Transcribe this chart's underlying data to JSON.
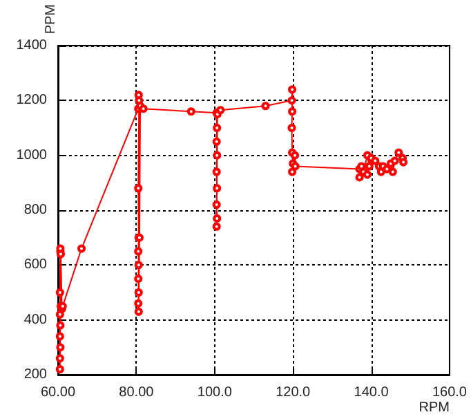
{
  "chart_data": {
    "type": "line",
    "xlabel": "RPM",
    "ylabel": "PPM",
    "xlim": [
      60,
      160
    ],
    "xticks": [
      {
        "value": 60,
        "label": "60.00"
      },
      {
        "value": 80,
        "label": "80.00"
      },
      {
        "value": 100,
        "label": "100.0"
      },
      {
        "value": 120,
        "label": "120.0"
      },
      {
        "value": 140,
        "label": "140.0"
      },
      {
        "value": 160,
        "label": "160.0"
      }
    ],
    "ylim": [
      200,
      1400
    ],
    "yticks": [
      200,
      400,
      600,
      800,
      1000,
      1200,
      1400
    ],
    "grid": true,
    "marker": "circle",
    "line_style": "solid",
    "series": [
      {
        "color": "#ff0000",
        "x": [
          60.5,
          60.5,
          60.6,
          60.5,
          60.6,
          60.5,
          60.7,
          60.5,
          60.6,
          60.6,
          60.7,
          61,
          61.2,
          66,
          80.5,
          80.6,
          80.7,
          80.5,
          80.6,
          80.5,
          80.6,
          80.5,
          80.6,
          80.5,
          80.6,
          80.8,
          81,
          81.8,
          94,
          100.5,
          100.6,
          100.5,
          100.6,
          100.5,
          100.6,
          100.5,
          100.6,
          100.5,
          100.7,
          101.5,
          113,
          119.7,
          119.8,
          119.8,
          119.7,
          119.8,
          120,
          119.8,
          120.5,
          120.6,
          137,
          137.5,
          137,
          138,
          139,
          139.5,
          139,
          140,
          141,
          142,
          142.5,
          143,
          144,
          145,
          145.5,
          146,
          147,
          148,
          148.2
        ],
        "values": [
          220,
          260,
          300,
          340,
          380,
          420,
          450,
          500,
          650,
          660,
          640,
          440,
          450,
          660,
          1170,
          1220,
          1200,
          880,
          700,
          650,
          600,
          550,
          500,
          460,
          430,
          700,
          1180,
          1170,
          1160,
          1155,
          1100,
          1050,
          1000,
          940,
          880,
          820,
          770,
          740,
          1150,
          1165,
          1180,
          1200,
          1240,
          1160,
          1100,
          1010,
          970,
          940,
          1000,
          960,
          950,
          960,
          920,
          940,
          1000,
          960,
          930,
          990,
          980,
          960,
          940,
          960,
          950,
          970,
          940,
          980,
          1010,
          990,
          975
        ]
      }
    ]
  }
}
